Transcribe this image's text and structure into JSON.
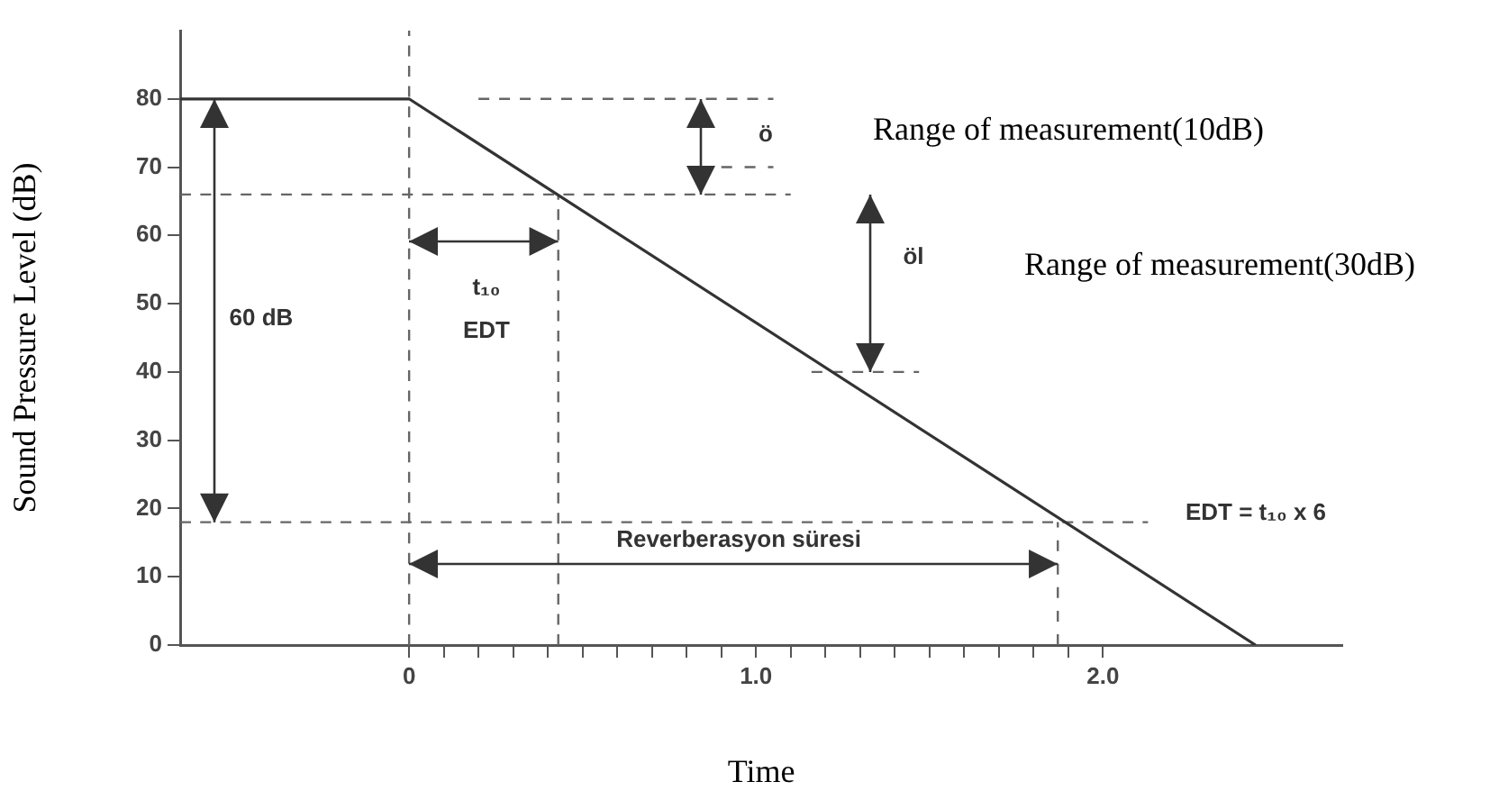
{
  "chart_data": {
    "type": "line",
    "xlabel": "Time",
    "ylabel": "Sound Pressure Level (dB)",
    "xlim": [
      -0.66,
      2.69
    ],
    "ylim": [
      0,
      90
    ],
    "xticks": [
      0,
      {
        "value": 0.1,
        "label": null
      },
      {
        "value": 0.2,
        "label": null
      },
      {
        "value": 0.3,
        "label": null
      },
      {
        "value": 0.4,
        "label": null
      },
      {
        "value": 0.5,
        "label": null
      },
      {
        "value": 0.6,
        "label": null
      },
      {
        "value": 0.7,
        "label": null
      },
      {
        "value": 0.8,
        "label": null
      },
      {
        "value": 0.9,
        "label": null
      },
      {
        "value": 1,
        "label": "1.0"
      },
      {
        "value": 1.1,
        "label": null
      },
      {
        "value": 1.2,
        "label": null
      },
      {
        "value": 1.3,
        "label": null
      },
      {
        "value": 1.4,
        "label": null
      },
      {
        "value": 1.5,
        "label": null
      },
      {
        "value": 1.6,
        "label": null
      },
      {
        "value": 1.7,
        "label": null
      },
      {
        "value": 1.8,
        "label": null
      },
      {
        "value": 1.9,
        "label": null
      },
      {
        "value": 2,
        "label": "2.0"
      }
    ],
    "yticks": [
      0,
      10,
      20,
      30,
      40,
      50,
      60,
      70,
      80
    ],
    "grid": false,
    "legend": false,
    "marker": "none",
    "series": [
      {
        "color": "#333333",
        "line_style": "solid",
        "x": [
          -0.66,
          0,
          2.44
        ],
        "values": [
          80,
          80,
          0
        ]
      },
      {
        "color": "#666666",
        "line_style": "dashed",
        "x": [
          0.2,
          1.05
        ],
        "values": [
          80,
          80
        ]
      },
      {
        "color": "#666666",
        "line_style": "dashed",
        "x": [
          0.9,
          1.05
        ],
        "values": [
          70,
          70
        ]
      },
      {
        "color": "#666666",
        "line_style": "dashed",
        "x": [
          -0.66,
          1.1
        ],
        "values": [
          66,
          66
        ]
      },
      {
        "color": "#666666",
        "line_style": "dashed",
        "x": [
          1.16,
          1.47
        ],
        "values": [
          40,
          40
        ]
      },
      {
        "color": "#666666",
        "line_style": "dashed",
        "x": [
          -0.66,
          2.13
        ],
        "values": [
          18,
          18
        ]
      },
      {
        "color": "#666666",
        "line_style": "dashed",
        "x": [
          0,
          0
        ],
        "values": [
          0,
          90
        ]
      },
      {
        "color": "#666666",
        "line_style": "dashed",
        "x": [
          0.43,
          0.43
        ],
        "values": [
          0,
          66
        ]
      },
      {
        "color": "#666666",
        "line_style": "dashed",
        "x": [
          1.87,
          1.87
        ],
        "values": [
          0,
          18
        ]
      }
    ],
    "annotations": [
      "60 dB",
      "t₁₀",
      "EDT",
      "ö",
      "öl",
      "Reverberasyon süresi",
      "EDT = t₁₀ x 6",
      "Range of measurement(10dB)",
      "Range of measurement(30dB)"
    ]
  }
}
